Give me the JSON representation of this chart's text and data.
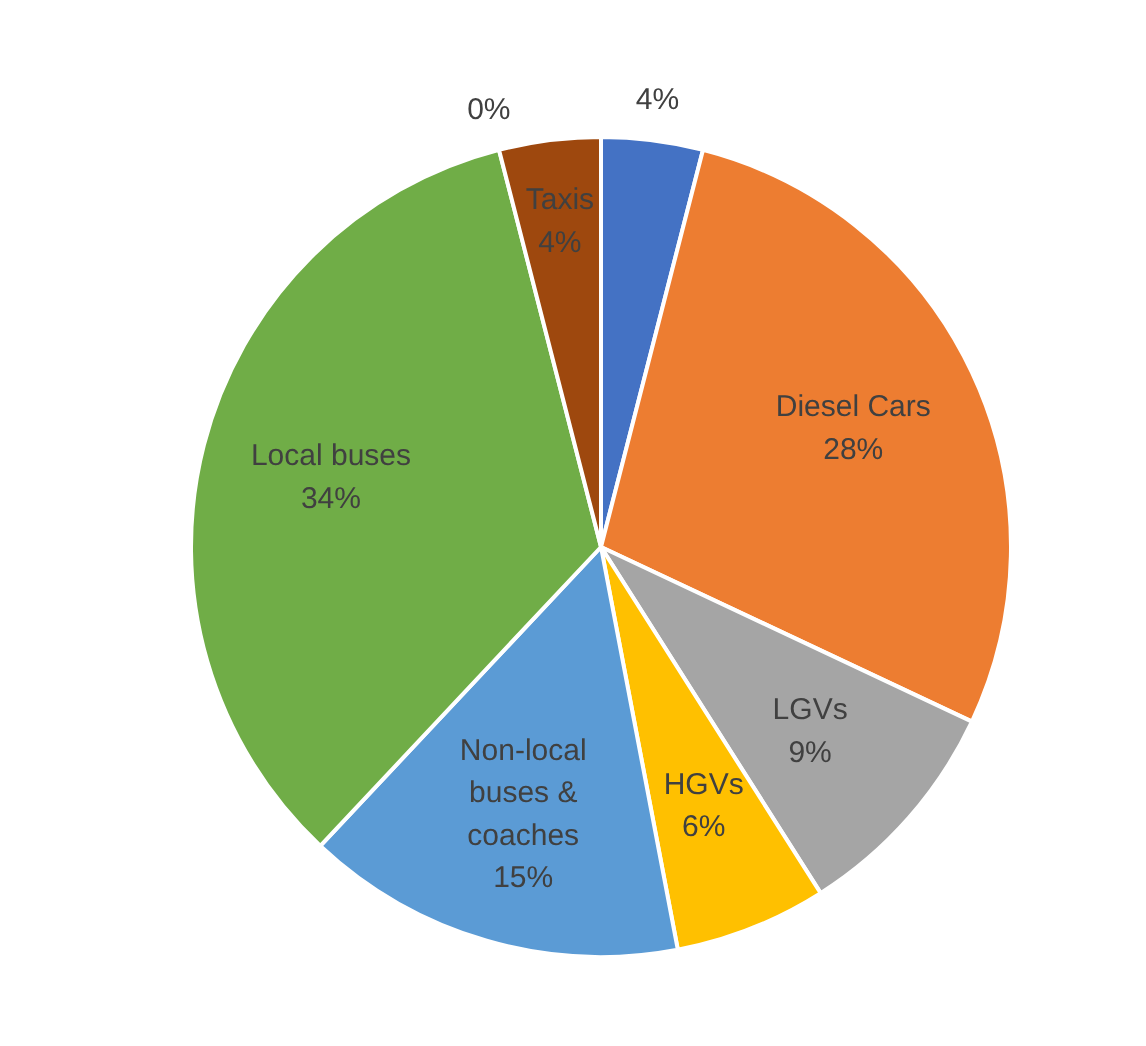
{
  "chart_data": {
    "type": "pie",
    "categories": [
      null,
      "Diesel Cars",
      "LGVs",
      "HGVs",
      "Non-local buses & coaches",
      "Local buses",
      null,
      "Taxis"
    ],
    "values": [
      4,
      28,
      9,
      6,
      15,
      34,
      0,
      4
    ],
    "value_labels": [
      "4%",
      "28%",
      "9%",
      "6%",
      "15%",
      "34%",
      "0%",
      "4%"
    ],
    "colors": [
      "#4472c4",
      "#ed7d31",
      "#a5a5a5",
      "#ffc000",
      "#5b9bd5",
      "#70ad47",
      "#264478",
      "#9e480e"
    ]
  }
}
